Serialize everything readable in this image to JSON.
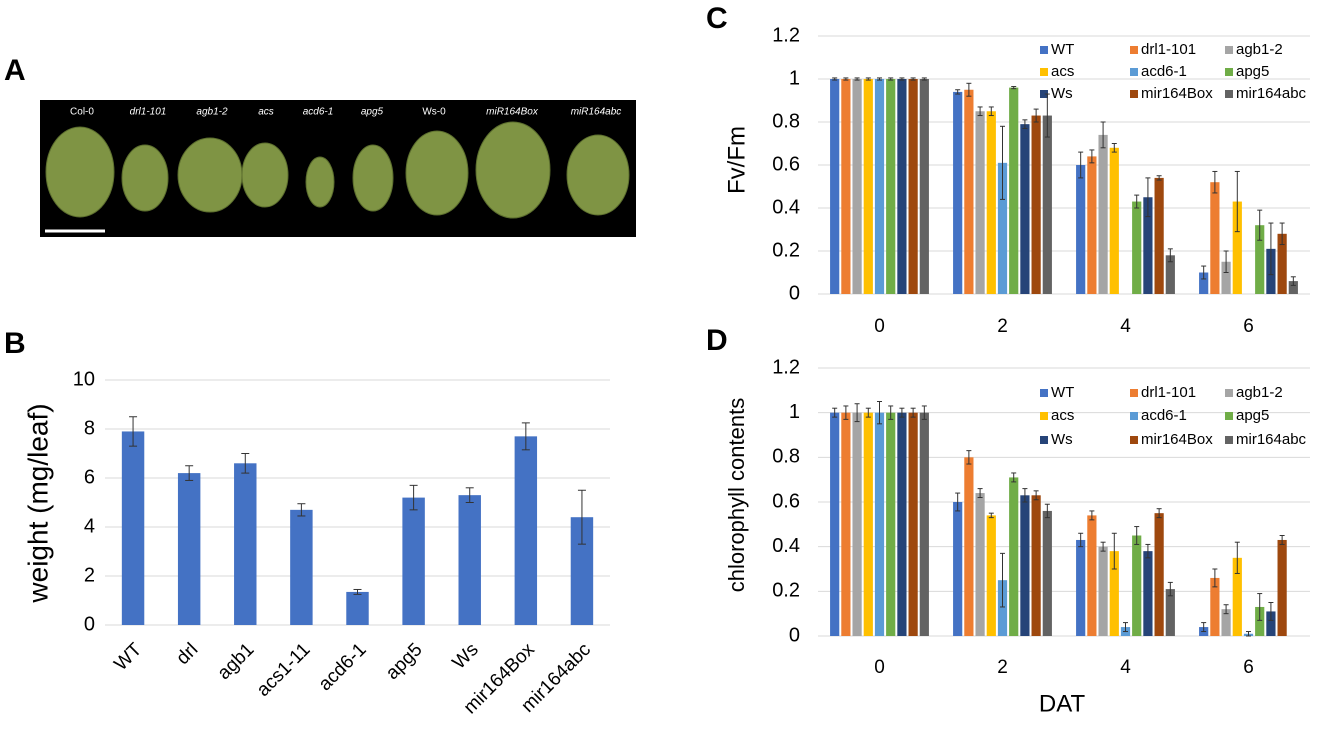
{
  "panel_labels": [
    "A",
    "B",
    "C",
    "D"
  ],
  "photo": {
    "labels": [
      "Col-0",
      "drl1-101",
      "agb1-2",
      "acs",
      "acd6-1",
      "apg5",
      "Ws-0",
      "miR164Box",
      "miR164abc"
    ]
  },
  "chart_data": [
    {
      "type": "bar",
      "y_label": "weight (mg/leaf)",
      "categories": [
        "WT",
        "drl",
        "agb1",
        "acs1-11",
        "acd6-1",
        "apg5",
        "Ws",
        "mir164Box",
        "mir164abc"
      ],
      "values": [
        7.9,
        6.2,
        6.6,
        4.7,
        1.35,
        5.2,
        5.3,
        7.7,
        4.4
      ],
      "errors": [
        0.6,
        0.3,
        0.4,
        0.25,
        0.1,
        0.5,
        0.3,
        0.55,
        1.1
      ],
      "color": "#4472c4",
      "ylim": [
        0,
        10
      ],
      "yticks": [
        0,
        2,
        4,
        6,
        8,
        10
      ],
      "grid": true
    },
    {
      "type": "bar",
      "y_label": "Fv/Fm",
      "categories": [
        "0",
        "2",
        "4",
        "6"
      ],
      "series": [
        {
          "name": "WT",
          "color": "#4472c4",
          "values": [
            1,
            0.94,
            0.6,
            0.1
          ],
          "errors": [
            0.005,
            0.01,
            0.06,
            0.03
          ]
        },
        {
          "name": "drl1-101",
          "color": "#ed7d31",
          "values": [
            1,
            0.95,
            0.64,
            0.52
          ],
          "errors": [
            0.005,
            0.03,
            0.03,
            0.05
          ]
        },
        {
          "name": "agb1-2",
          "color": "#a5a5a5",
          "values": [
            1,
            0.85,
            0.74,
            0.15
          ],
          "errors": [
            0.005,
            0.02,
            0.06,
            0.05
          ]
        },
        {
          "name": "acs",
          "color": "#ffc000",
          "values": [
            1,
            0.85,
            0.68,
            0.43
          ],
          "errors": [
            0.005,
            0.02,
            0.02,
            0.14
          ]
        },
        {
          "name": "acd6-1",
          "color": "#5b9bd5",
          "values": [
            1,
            0.61,
            null,
            null
          ],
          "errors": [
            0.005,
            0.17,
            null,
            null
          ]
        },
        {
          "name": "apg5",
          "color": "#70ad47",
          "values": [
            1,
            0.96,
            0.43,
            0.32
          ],
          "errors": [
            0.005,
            0.005,
            0.03,
            0.07
          ]
        },
        {
          "name": "Ws",
          "color": "#264478",
          "values": [
            1,
            0.79,
            0.45,
            0.21
          ],
          "errors": [
            0.005,
            0.02,
            0.09,
            0.12
          ]
        },
        {
          "name": "mir164Box",
          "color": "#9e480e",
          "values": [
            1,
            0.83,
            0.54,
            0.28
          ],
          "errors": [
            0.005,
            0.03,
            0.01,
            0.05
          ]
        },
        {
          "name": "mir164abc",
          "color": "#636363",
          "values": [
            1,
            0.83,
            0.18,
            0.06
          ],
          "errors": [
            0.005,
            0.1,
            0.03,
            0.02
          ]
        }
      ],
      "ylim": [
        0,
        1.2
      ],
      "yticks": [
        0,
        0.2,
        0.4,
        0.6,
        0.8,
        1,
        1.2
      ],
      "grid": true
    },
    {
      "type": "bar",
      "y_label": "chlorophyll contents",
      "x_label": "DAT",
      "categories": [
        "0",
        "2",
        "4",
        "6"
      ],
      "series": [
        {
          "name": "WT",
          "color": "#4472c4",
          "values": [
            1,
            0.6,
            0.43,
            0.04
          ],
          "errors": [
            0.02,
            0.04,
            0.03,
            0.02
          ]
        },
        {
          "name": "drl1-101",
          "color": "#ed7d31",
          "values": [
            1,
            0.8,
            0.54,
            0.26
          ],
          "errors": [
            0.03,
            0.03,
            0.02,
            0.04
          ]
        },
        {
          "name": "agb1-2",
          "color": "#a5a5a5",
          "values": [
            1,
            0.64,
            0.4,
            0.12
          ],
          "errors": [
            0.04,
            0.02,
            0.02,
            0.02
          ]
        },
        {
          "name": "acs",
          "color": "#ffc000",
          "values": [
            1,
            0.54,
            0.38,
            0.35
          ],
          "errors": [
            0.02,
            0.01,
            0.08,
            0.07
          ]
        },
        {
          "name": "acd6-1",
          "color": "#5b9bd5",
          "values": [
            1,
            0.25,
            0.04,
            0.01
          ],
          "errors": [
            0.05,
            0.12,
            0.02,
            0.01
          ]
        },
        {
          "name": "apg5",
          "color": "#70ad47",
          "values": [
            1,
            0.71,
            0.45,
            0.13
          ],
          "errors": [
            0.03,
            0.02,
            0.04,
            0.06
          ]
        },
        {
          "name": "Ws",
          "color": "#264478",
          "values": [
            1,
            0.63,
            0.38,
            0.11
          ],
          "errors": [
            0.02,
            0.03,
            0.03,
            0.04
          ]
        },
        {
          "name": "mir164Box",
          "color": "#9e480e",
          "values": [
            1,
            0.63,
            0.55,
            0.43
          ],
          "errors": [
            0.02,
            0.02,
            0.02,
            0.02
          ]
        },
        {
          "name": "mir164abc",
          "color": "#636363",
          "values": [
            1,
            0.56,
            0.21,
            null
          ],
          "errors": [
            0.03,
            0.03,
            0.03,
            null
          ]
        }
      ],
      "ylim": [
        0,
        1.2
      ],
      "yticks": [
        0,
        0.2,
        0.4,
        0.6,
        0.8,
        1,
        1.2
      ],
      "grid": true
    }
  ]
}
